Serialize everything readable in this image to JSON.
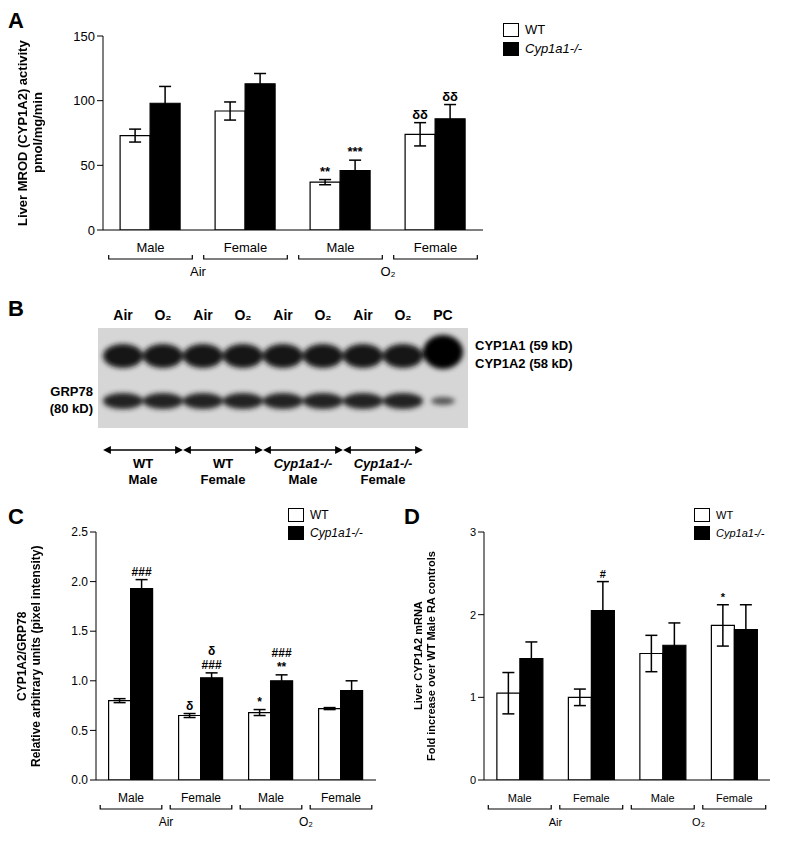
{
  "chart_data": [
    {
      "type": "bar",
      "panel_label": "A",
      "y_label": [
        "Liver MROD (CYP1A2) activity",
        "pmol/mg/min"
      ],
      "categories": [
        "Male",
        "Female",
        "Male",
        "Female"
      ],
      "groups": [
        {
          "label": "Air",
          "span": [
            0,
            1
          ]
        },
        {
          "label": "O₂",
          "span": [
            2,
            3
          ]
        }
      ],
      "series": [
        {
          "name": "WT",
          "color": "#ffffff",
          "values": [
            73,
            92,
            37,
            74
          ],
          "errors": [
            5,
            7,
            2,
            9
          ],
          "annotations": [
            [],
            [],
            [
              "**"
            ],
            [
              "δδ"
            ]
          ]
        },
        {
          "name": "Cyp1a1-/-",
          "color": "#000000",
          "values": [
            98,
            113,
            46,
            86
          ],
          "errors": [
            13,
            8,
            8,
            11
          ],
          "annotations": [
            [],
            [],
            [
              "***"
            ],
            [
              "δδ"
            ]
          ]
        }
      ],
      "ylim": [
        0,
        150
      ],
      "yticks": [
        0,
        50,
        100,
        150
      ],
      "legend": "upper right"
    },
    {
      "type": "bar",
      "panel_label": "C",
      "y_label": [
        "CYP1A2/GRP78",
        "Relative arbitrary units (pixel intensity)"
      ],
      "categories": [
        "Male",
        "Female",
        "Male",
        "Female"
      ],
      "groups": [
        {
          "label": "Air",
          "span": [
            0,
            1
          ]
        },
        {
          "label": "O₂",
          "span": [
            2,
            3
          ]
        }
      ],
      "series": [
        {
          "name": "WT",
          "color": "#ffffff",
          "values": [
            0.8,
            0.65,
            0.68,
            0.72
          ],
          "errors": [
            0.02,
            0.02,
            0.03,
            0.01
          ],
          "annotations": [
            [],
            [
              "δ"
            ],
            [
              "*"
            ],
            []
          ]
        },
        {
          "name": "Cyp1a1-/-",
          "color": "#000000",
          "values": [
            1.93,
            1.03,
            1.0,
            0.9
          ],
          "errors": [
            0.09,
            0.05,
            0.06,
            0.1
          ],
          "annotations": [
            [
              "###"
            ],
            [
              "δ",
              "###"
            ],
            [
              "###",
              "**"
            ],
            []
          ]
        }
      ],
      "ylim": [
        0,
        2.5
      ],
      "yticks": [
        {
          "value": 0,
          "label": "0.0"
        },
        {
          "value": 0.5,
          "label": "0.5"
        },
        {
          "value": 1,
          "label": "1.0"
        },
        {
          "value": 1.5,
          "label": "1.5"
        },
        {
          "value": 2,
          "label": "2.0"
        },
        {
          "value": 2.5,
          "label": "2.5"
        }
      ],
      "legend": "upper right"
    },
    {
      "type": "bar",
      "panel_label": "D",
      "y_label": [
        "Liver CYP1A2 mRNA",
        "Fold increase over WT Male RA controls"
      ],
      "categories": [
        "Male",
        "Female",
        "Male",
        "Female"
      ],
      "groups": [
        {
          "label": "Air",
          "span": [
            0,
            1
          ]
        },
        {
          "label": "O₂",
          "span": [
            2,
            3
          ]
        }
      ],
      "series": [
        {
          "name": "WT",
          "color": "#ffffff",
          "values": [
            1.05,
            1.0,
            1.53,
            1.87
          ],
          "errors": [
            0.25,
            0.1,
            0.22,
            0.25
          ],
          "annotations": [
            [],
            [],
            [],
            [
              "*"
            ]
          ]
        },
        {
          "name": "Cyp1a1-/-",
          "color": "#000000",
          "values": [
            1.47,
            2.05,
            1.63,
            1.82
          ],
          "errors": [
            0.2,
            0.35,
            0.27,
            0.3
          ],
          "annotations": [
            [],
            [
              "#"
            ],
            [],
            []
          ]
        }
      ],
      "ylim": [
        0,
        3
      ],
      "yticks": [
        0,
        1,
        2,
        3
      ],
      "legend": "upper right"
    }
  ],
  "blot": {
    "panel_label": "B",
    "lanes": [
      "Air",
      "O₂",
      "Air",
      "O₂",
      "Air",
      "O₂",
      "Air",
      "O₂",
      "PC"
    ],
    "bands": [
      [
        "CYP1A1 (59 kD)",
        "CYP1A2 (58 kD)"
      ],
      [
        "GRP78",
        "(80 kD)"
      ]
    ],
    "groups": [
      {
        "genotype": "WT",
        "sex": "Male"
      },
      {
        "genotype": "WT",
        "sex": "Female"
      },
      {
        "genotype": "Cyp1a1-/-",
        "sex": "Male"
      },
      {
        "genotype": "Cyp1a1-/-",
        "sex": "Female"
      }
    ]
  }
}
